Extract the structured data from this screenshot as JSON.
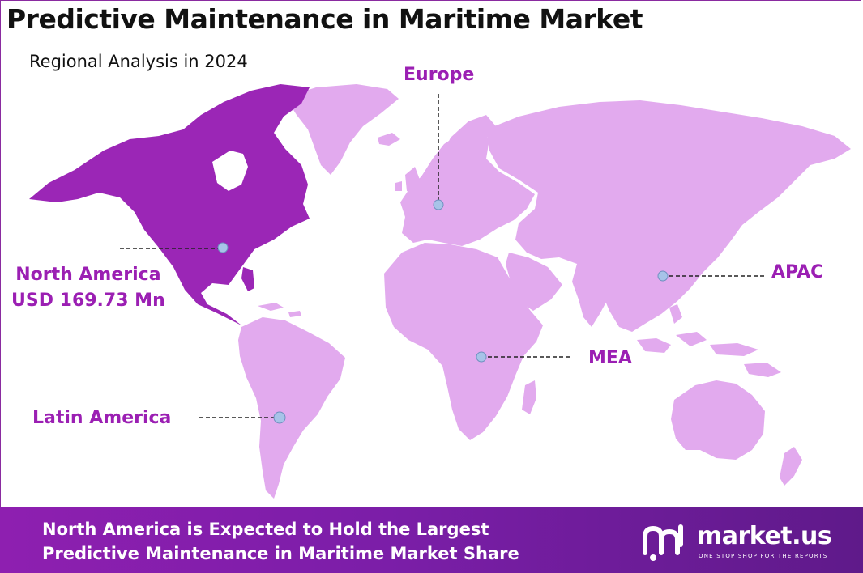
{
  "title": "Predictive Maintenance in Maritime Market",
  "subtitle": "Regional Analysis in 2024",
  "colors": {
    "highlight_region": "#9b26b6",
    "other_regions": "#e2aaee",
    "label_text": "#9b1fb3",
    "marker": "#a7c3e8",
    "footer_bg": "#8e1fb0"
  },
  "regions": {
    "north_america": {
      "name": "North America",
      "value": "USD 169.73 Mn"
    },
    "europe": {
      "name": "Europe"
    },
    "apac": {
      "name": "APAC"
    },
    "mea": {
      "name": "MEA"
    },
    "latin_america": {
      "name": "Latin America"
    }
  },
  "footer": {
    "line1": "North America is Expected to Hold the Largest",
    "line2": "Predictive Maintenance in Maritime Market Share"
  },
  "logo": {
    "name": "market.us",
    "tagline": "ONE STOP SHOP FOR THE REPORTS",
    "icon": "market-us-logo-icon"
  }
}
